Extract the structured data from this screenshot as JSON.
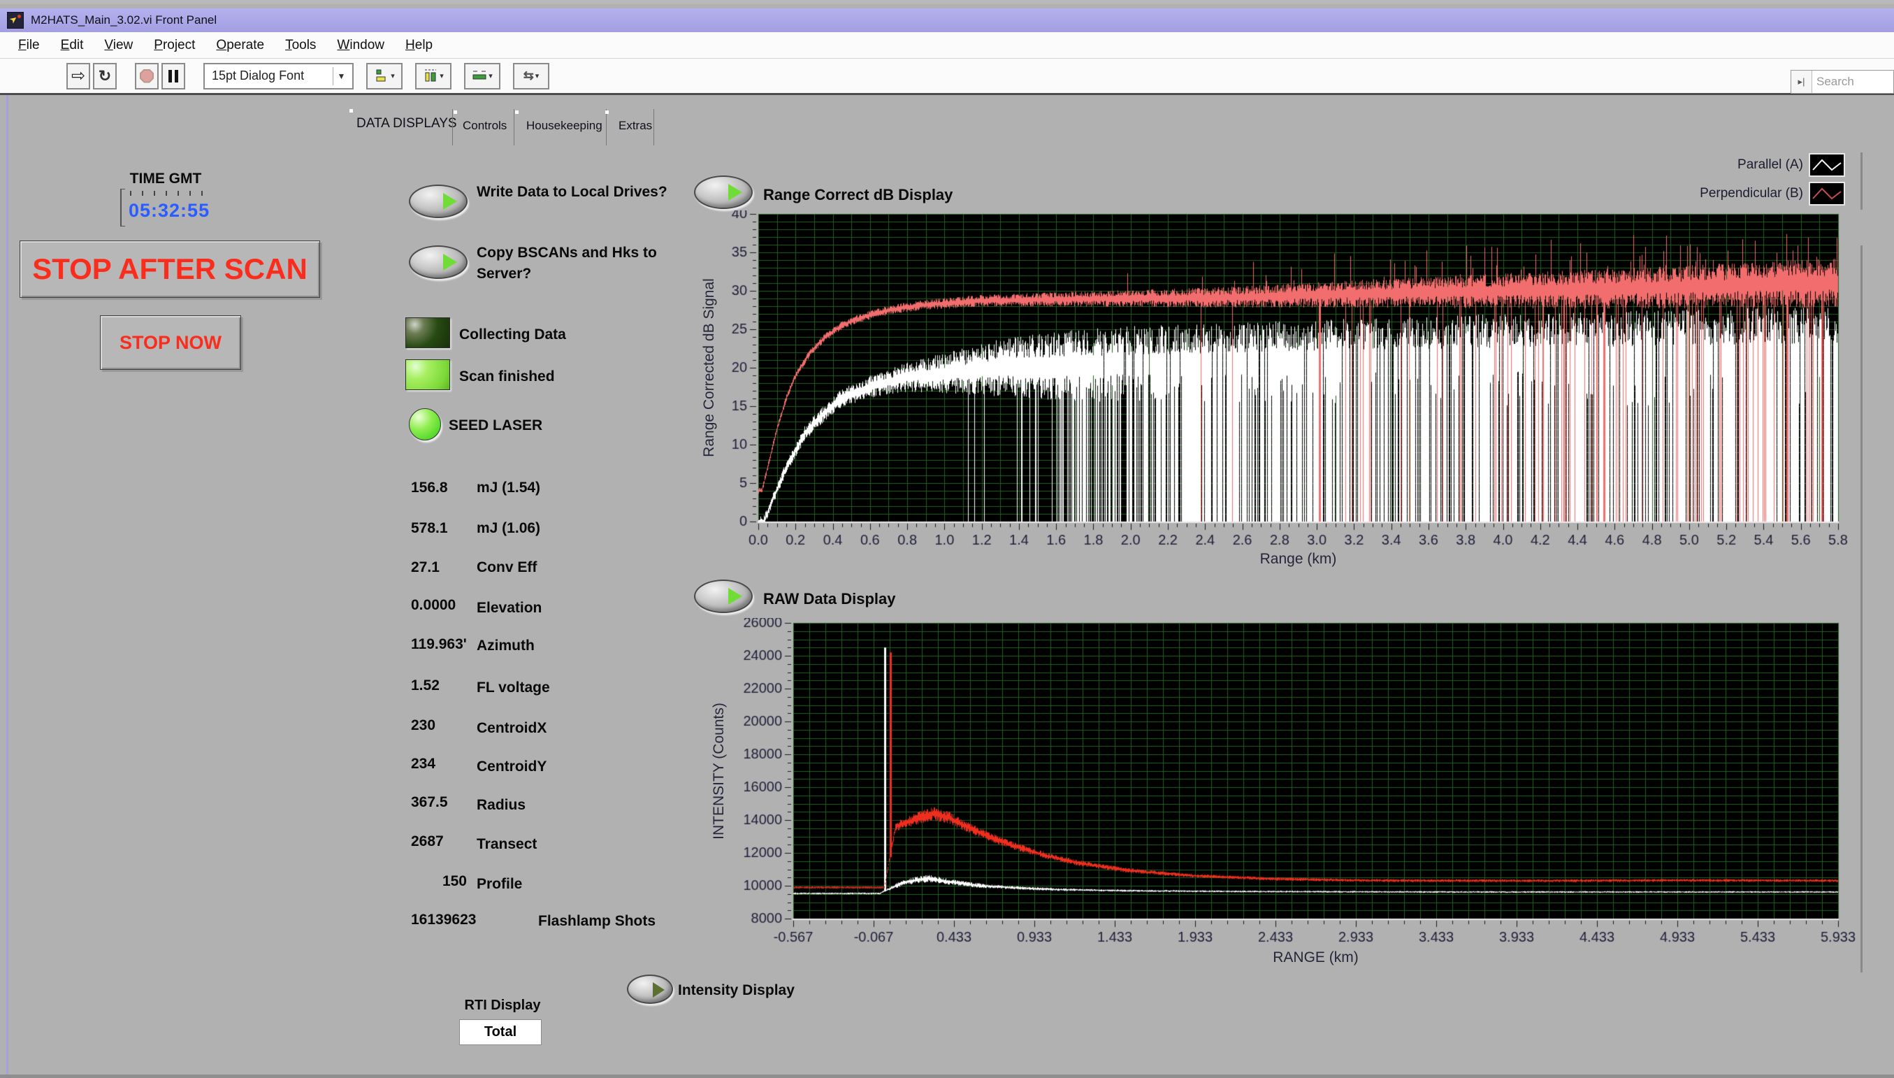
{
  "window": {
    "title": "M2HATS_Main_3.02.vi Front Panel"
  },
  "menu": {
    "items": [
      "File",
      "Edit",
      "View",
      "Project",
      "Operate",
      "Tools",
      "Window",
      "Help"
    ]
  },
  "toolbar": {
    "font_selector": "15pt Dialog Font",
    "search_placeholder": "Search"
  },
  "tabs": {
    "items": [
      "DATA DISPLAYS",
      "Controls",
      "Housekeeping",
      "Extras"
    ],
    "active_index": 0
  },
  "left_panel": {
    "time_label": "TIME GMT",
    "time_value": "05:32:55",
    "stop_after_scan_label": "STOP AFTER SCAN",
    "stop_now_label": "STOP NOW"
  },
  "switches": {
    "write_data": "Write Data to Local Drives?",
    "copy_bscans": "Copy BSCANs and Hks to Server?",
    "collecting_data": "Collecting Data",
    "scan_finished": "Scan finished",
    "seed_laser": "SEED LASER",
    "range_correct": "Range Correct dB Display",
    "raw_data": "RAW Data Display",
    "intensity": "Intensity Display"
  },
  "readouts": [
    {
      "value": "156.8",
      "label": "mJ (1.54)"
    },
    {
      "value": "578.1",
      "label": "mJ (1.06)"
    },
    {
      "value": "27.1",
      "label": "Conv Eff"
    },
    {
      "value": "0.0000",
      "label": "Elevation"
    },
    {
      "value": "119.963'",
      "label": "Azimuth"
    },
    {
      "value": "1.52",
      "label": "FL voltage"
    },
    {
      "value": "230",
      "label": "CentroidX"
    },
    {
      "value": "234",
      "label": "CentroidY"
    },
    {
      "value": "367.5",
      "label": "Radius"
    },
    {
      "value": "2687",
      "label": "Transect"
    },
    {
      "value": "150",
      "label": "Profile"
    },
    {
      "value": "16139623",
      "label": "Flashlamp Shots"
    }
  ],
  "rti": {
    "label": "RTI Display",
    "value": "Total"
  },
  "colors": {
    "panel": "#b1b1b1",
    "titlebar": "#a8a4e4",
    "time_blue": "#2a5cff",
    "stop_red": "#fa2c1c",
    "led_on_green": "#7cd838",
    "plot_bg": "#000000",
    "plot_grid": "#236023",
    "parallel_white": "#ffffff",
    "perpendicular_red_db": "#f26d6d",
    "perpendicular_red_raw": "#ee2e1e"
  },
  "chart_data": [
    {
      "id": "range_correct_db",
      "type": "line",
      "title": "Range Correct dB Display",
      "xlabel": "Range (km)",
      "ylabel": "Range Corrected dB Signal",
      "xlim": [
        0,
        5.8
      ],
      "ylim": [
        0,
        40
      ],
      "x_major": 0.2,
      "x_minor": 0.05,
      "x_grid": 0.1,
      "y_major": 5,
      "y_minor": 1,
      "y_grid": 1,
      "x_decimals": 1,
      "bg": "#000000",
      "grid_color": "#236023",
      "grid": true,
      "legend_position": "top-right",
      "legend": [
        {
          "name": "Parallel (A)",
          "color": "#ffffff",
          "swatch": "#f2f2f2"
        },
        {
          "name": "Perpendicular (B)",
          "color": "#f26d6d",
          "swatch": "#c05050"
        }
      ],
      "series": [
        {
          "name": "Parallel (A)",
          "color": "#ffffff",
          "mean": [
            [
              0.03,
              0
            ],
            [
              0.08,
              3
            ],
            [
              0.15,
              7
            ],
            [
              0.25,
              11.5
            ],
            [
              0.35,
              14
            ],
            [
              0.45,
              16
            ],
            [
              0.6,
              17.5
            ],
            [
              0.8,
              18.8
            ],
            [
              1,
              19.3
            ],
            [
              1.3,
              20
            ],
            [
              1.7,
              20.3
            ],
            [
              2.2,
              20.5
            ],
            [
              3,
              20.8
            ],
            [
              4,
              21
            ],
            [
              5,
              21.3
            ],
            [
              5.78,
              21.5
            ]
          ],
          "noise": [
            [
              0.05,
              0.7
            ],
            [
              0.4,
              1.2
            ],
            [
              0.7,
              1.6
            ],
            [
              1,
              2.6
            ],
            [
              1.3,
              3.8
            ],
            [
              1.6,
              4.5
            ],
            [
              2,
              5
            ],
            [
              3,
              5.5
            ],
            [
              4,
              6
            ],
            [
              5.78,
              6.5
            ]
          ],
          "fill_to_zero_prob": [
            [
              0,
              0
            ],
            [
              1.1,
              0
            ],
            [
              1.25,
              0.05
            ],
            [
              1.5,
              0.2
            ],
            [
              1.8,
              0.55
            ],
            [
              2.2,
              0.8
            ],
            [
              2.8,
              0.9
            ],
            [
              5.78,
              0.93
            ]
          ],
          "gap_prob": [
            [
              0,
              0
            ],
            [
              1.7,
              0
            ],
            [
              2,
              0.06
            ],
            [
              3,
              0.1
            ],
            [
              5.78,
              0.12
            ]
          ]
        },
        {
          "name": "Perpendicular (B)",
          "color": "#f26d6d",
          "mean": [
            [
              0.02,
              4
            ],
            [
              0.06,
              8
            ],
            [
              0.1,
              12
            ],
            [
              0.15,
              16
            ],
            [
              0.2,
              19
            ],
            [
              0.28,
              22
            ],
            [
              0.36,
              24
            ],
            [
              0.45,
              25.5
            ],
            [
              0.55,
              26.5
            ],
            [
              0.7,
              27.5
            ],
            [
              0.9,
              28.2
            ],
            [
              1.2,
              28.7
            ],
            [
              1.6,
              28.9
            ],
            [
              2,
              29
            ],
            [
              2.6,
              29.2
            ],
            [
              3.2,
              29.6
            ],
            [
              4,
              30
            ],
            [
              4.8,
              30.4
            ],
            [
              5.4,
              30.8
            ],
            [
              5.78,
              31
            ]
          ],
          "noise": [
            [
              0.05,
              0.4
            ],
            [
              0.5,
              0.55
            ],
            [
              1,
              0.7
            ],
            [
              1.5,
              0.9
            ],
            [
              2,
              1.1
            ],
            [
              2.6,
              1.4
            ],
            [
              3.2,
              1.8
            ],
            [
              4,
              2.3
            ],
            [
              5,
              2.8
            ],
            [
              5.78,
              3.2
            ]
          ],
          "drop_to_zero_prob": [
            [
              0,
              0
            ],
            [
              2,
              0
            ],
            [
              2.3,
              0.02
            ],
            [
              3,
              0.05
            ],
            [
              4,
              0.08
            ],
            [
              5,
              0.11
            ],
            [
              5.78,
              0.13
            ]
          ],
          "spike_up_prob": [
            [
              0,
              0
            ],
            [
              1.8,
              0
            ],
            [
              2.2,
              0.02
            ],
            [
              3,
              0.05
            ],
            [
              4,
              0.08
            ],
            [
              5.78,
              0.11
            ]
          ],
          "spike_up_max": [
            [
              0,
              30
            ],
            [
              2.5,
              34
            ],
            [
              3.5,
              36
            ],
            [
              5.78,
              38.5
            ]
          ]
        }
      ]
    },
    {
      "id": "raw_data",
      "type": "line",
      "title": "RAW Data Display",
      "xlabel": "RANGE (km)",
      "ylabel": "INTENSITY (Counts)",
      "xlim": [
        -0.567,
        5.933
      ],
      "ylim": [
        8000,
        26000
      ],
      "x_major": 0.5,
      "x_minor": 0.1,
      "x_grid": 0.1,
      "y_major": 2000,
      "y_minor": 500,
      "y_grid": 500,
      "x_decimals": 3,
      "bg": "#000000",
      "grid_color": "#236023",
      "grid": true,
      "series": [
        {
          "name": "Parallel (A)",
          "color": "#ffffff",
          "mean": [
            [
              -0.567,
              9530
            ],
            [
              -0.03,
              9530
            ],
            [
              0.05,
              9900
            ],
            [
              0.12,
              10200
            ],
            [
              0.2,
              10350
            ],
            [
              0.28,
              10450
            ],
            [
              0.36,
              10300
            ],
            [
              0.48,
              10150
            ],
            [
              0.6,
              10000
            ],
            [
              0.8,
              9880
            ],
            [
              1.1,
              9760
            ],
            [
              1.5,
              9700
            ],
            [
              2.2,
              9650
            ],
            [
              3.5,
              9620
            ],
            [
              5,
              9620
            ],
            [
              5.933,
              9620
            ]
          ],
          "noise": [
            [
              -0.567,
              55
            ],
            [
              0,
              55
            ],
            [
              0.08,
              160
            ],
            [
              0.25,
              230
            ],
            [
              0.45,
              170
            ],
            [
              0.7,
              110
            ],
            [
              1.2,
              70
            ],
            [
              2,
              55
            ],
            [
              5.933,
              50
            ]
          ],
          "spike": {
            "x": 0,
            "y": 24500,
            "width": 3
          }
        },
        {
          "name": "Perpendicular (B)",
          "color": "#ee2e1e",
          "mean": [
            [
              -0.567,
              9890
            ],
            [
              0,
              9890
            ],
            [
              0.07,
              13600
            ],
            [
              0.14,
              13850
            ],
            [
              0.22,
              14150
            ],
            [
              0.3,
              14400
            ],
            [
              0.4,
              14150
            ],
            [
              0.52,
              13550
            ],
            [
              0.65,
              13000
            ],
            [
              0.8,
              12450
            ],
            [
              1,
              11850
            ],
            [
              1.2,
              11400
            ],
            [
              1.5,
              10950
            ],
            [
              1.9,
              10620
            ],
            [
              2.4,
              10420
            ],
            [
              3,
              10320
            ],
            [
              4,
              10300
            ],
            [
              5,
              10330
            ],
            [
              5.933,
              10310
            ]
          ],
          "noise": [
            [
              -0.567,
              65
            ],
            [
              0,
              65
            ],
            [
              0.1,
              320
            ],
            [
              0.3,
              430
            ],
            [
              0.5,
              330
            ],
            [
              0.8,
              230
            ],
            [
              1.2,
              170
            ],
            [
              2,
              110
            ],
            [
              3,
              90
            ],
            [
              5.933,
              85
            ]
          ],
          "spike": {
            "x": 0.035,
            "y": 24200,
            "width": 3
          }
        }
      ]
    }
  ]
}
